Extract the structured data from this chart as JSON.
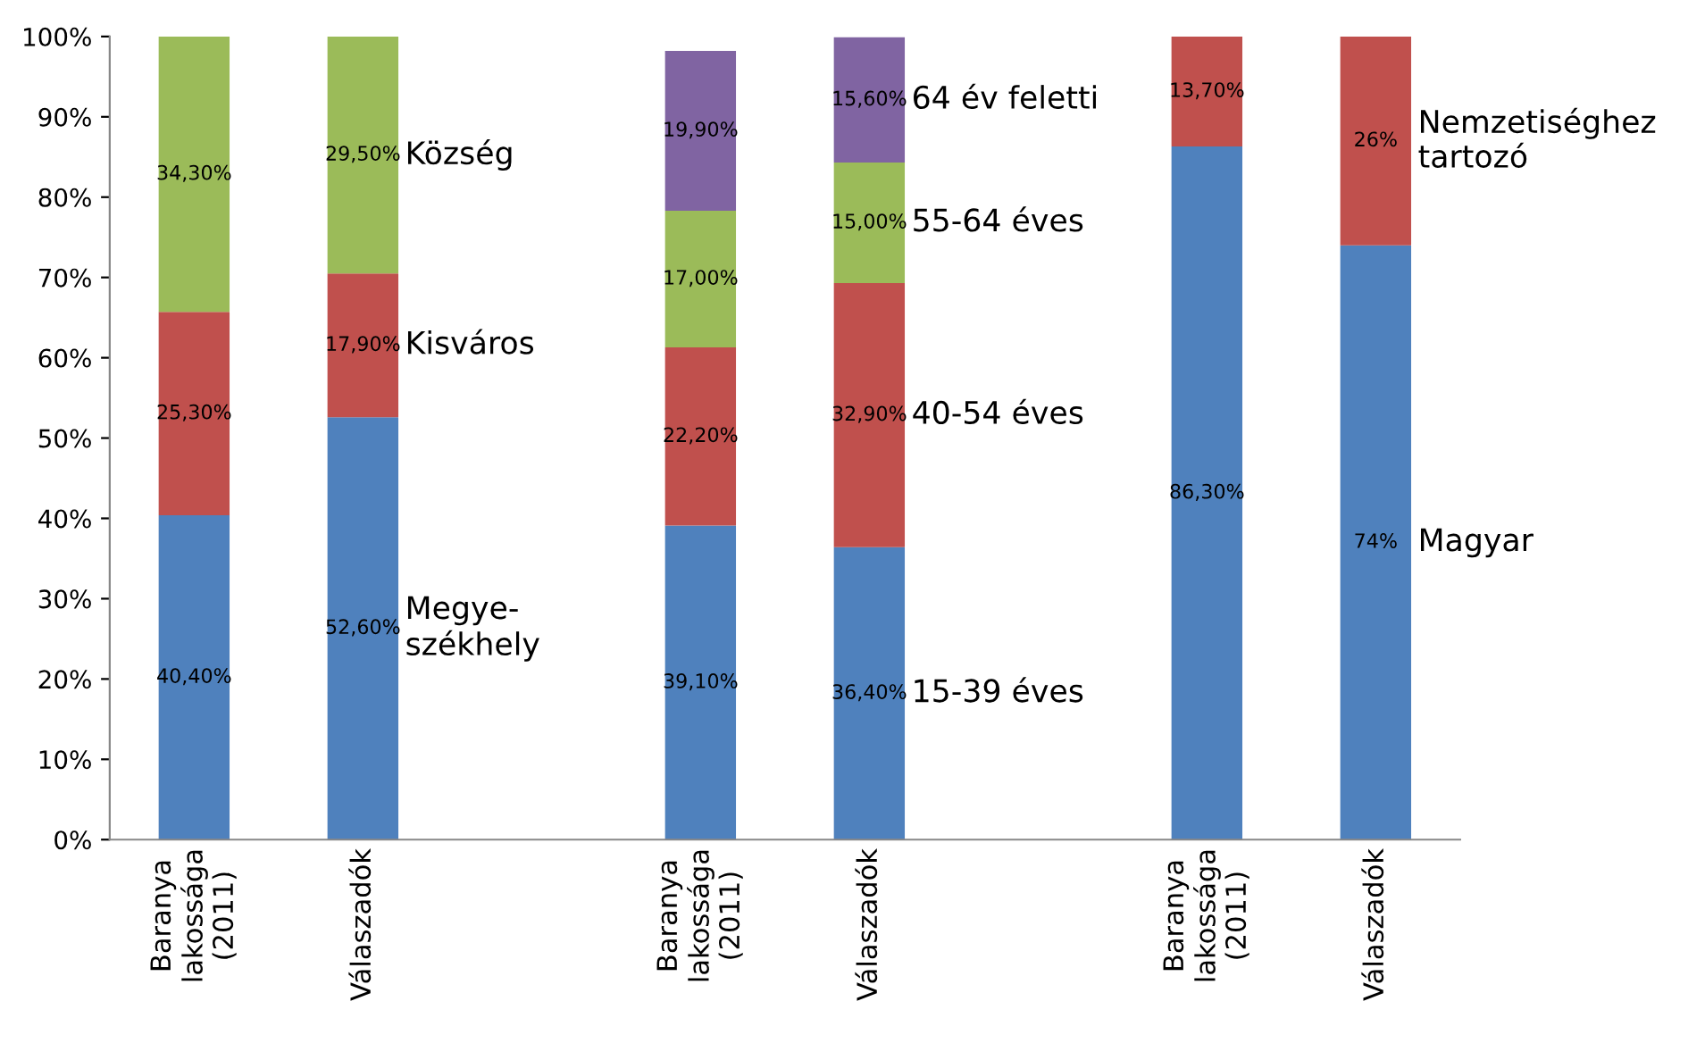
{
  "chart_data": {
    "type": "bar",
    "stacked": true,
    "categories": [
      "Baranya\nlakossága\n(2011)",
      "Válaszadók",
      null,
      "Baranya\nlakossága\n(2011)",
      "Válaszadók",
      null,
      "Baranya\nlakossága\n(2011)",
      "Válaszadók"
    ],
    "series": [
      {
        "color": "#4f81bd",
        "values": [
          40.4,
          52.6,
          null,
          39.1,
          36.4,
          null,
          86.3,
          74
        ],
        "value_labels": [
          "40,40%",
          "52,60%",
          null,
          "39,10%",
          "36,40%",
          null,
          "86,30%",
          "74%"
        ]
      },
      {
        "color": "#c0504d",
        "values": [
          25.3,
          17.9,
          null,
          22.2,
          32.9,
          null,
          13.7,
          26
        ],
        "value_labels": [
          "25,30%",
          "17,90%",
          null,
          "22,20%",
          "32,90%",
          null,
          "13,70%",
          "26%"
        ]
      },
      {
        "color": "#9bbb59",
        "values": [
          34.3,
          29.5,
          null,
          17.0,
          15.0,
          null,
          null,
          null
        ],
        "value_labels": [
          "34,30%",
          "29,50%",
          null,
          "17,00%",
          "15,00%",
          null,
          null,
          null
        ]
      },
      {
        "color": "#8064a2",
        "values": [
          null,
          null,
          null,
          19.9,
          15.6,
          null,
          null,
          null
        ],
        "value_labels": [
          null,
          null,
          null,
          "19,90%",
          "15,60%",
          null,
          null,
          null
        ]
      }
    ],
    "ylim": [
      0,
      100
    ],
    "yticks": [
      {
        "value": 0,
        "label": "0%"
      },
      {
        "value": 10,
        "label": "10%"
      },
      {
        "value": 20,
        "label": "20%"
      },
      {
        "value": 30,
        "label": "30%"
      },
      {
        "value": 40,
        "label": "40%"
      },
      {
        "value": 50,
        "label": "50%"
      },
      {
        "value": 60,
        "label": "60%"
      },
      {
        "value": 70,
        "label": "70%"
      },
      {
        "value": 80,
        "label": "80%"
      },
      {
        "value": 90,
        "label": "90%"
      },
      {
        "value": 100,
        "label": "100%"
      }
    ],
    "grid": false,
    "annotations": [
      "Község",
      "Kisváros",
      "Megye-\nszékhely",
      "64 év feletti",
      "55-64 éves",
      "40-54 éves",
      "15-39 éves",
      "Nemzetiséghez\ntartozó",
      "Magyar"
    ]
  }
}
